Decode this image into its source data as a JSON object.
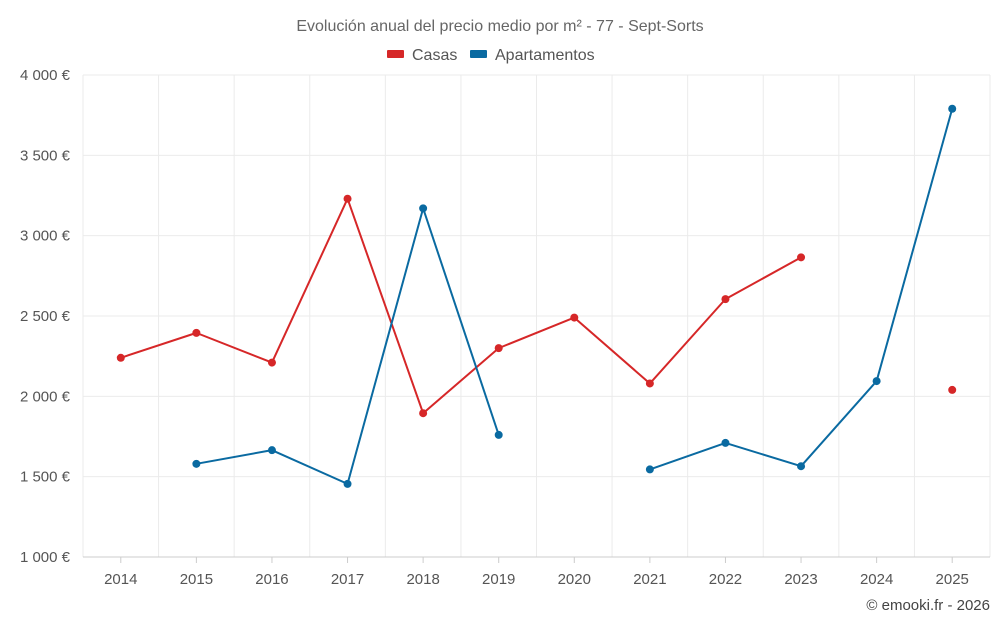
{
  "chart_data": {
    "type": "line",
    "title": "Evolución anual del precio medio por m² - 77 - Sept-Sorts",
    "xlabel": "",
    "ylabel": "",
    "categories": [
      "2014",
      "2015",
      "2016",
      "2017",
      "2018",
      "2019",
      "2020",
      "2021",
      "2022",
      "2023",
      "2024",
      "2025"
    ],
    "ylim": [
      1000,
      4000
    ],
    "yticks": [
      1000,
      1500,
      2000,
      2500,
      3000,
      3500,
      4000
    ],
    "ytick_labels": [
      "1 000 €",
      "1 500 €",
      "2 000 €",
      "2 500 €",
      "3 000 €",
      "3 500 €",
      "4 000 €"
    ],
    "grid": true,
    "legend_position": "top-center",
    "series": [
      {
        "name": "Casas",
        "color": "#d62728",
        "values": [
          2240,
          2395,
          2210,
          3230,
          1895,
          2300,
          2490,
          2080,
          2605,
          2865,
          null,
          2040
        ]
      },
      {
        "name": "Apartamentos",
        "color": "#0a6aa1",
        "values": [
          null,
          1580,
          1665,
          1455,
          3170,
          1760,
          null,
          1545,
          1710,
          1565,
          2095,
          3790
        ]
      }
    ]
  },
  "credit": "© emooki.fr - 2026"
}
